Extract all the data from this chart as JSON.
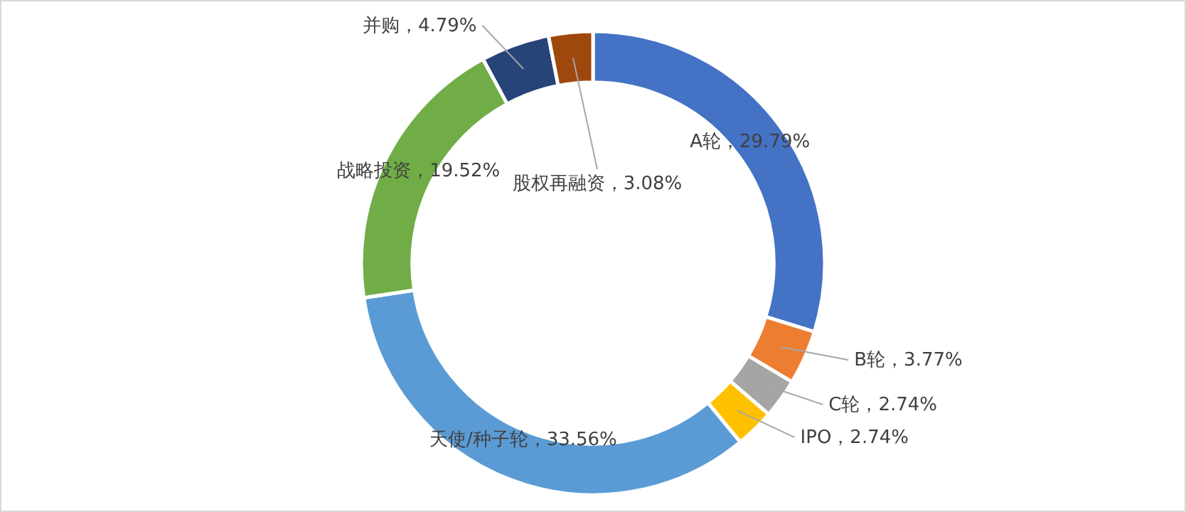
{
  "chart_data": {
    "type": "donut",
    "categories": [
      "A轮",
      "B轮",
      "C轮",
      "IPO",
      "天使/种子轮",
      "战略投资",
      "并购",
      "股权再融资"
    ],
    "values": [
      29.79,
      3.77,
      2.74,
      2.74,
      33.56,
      19.52,
      4.79,
      3.08
    ],
    "value_labels": [
      "29.79%",
      "3.77%",
      "2.74%",
      "2.74%",
      "33.56%",
      "19.52%",
      "4.79%",
      "3.08%"
    ],
    "colors": [
      "#4472c4",
      "#ed7d31",
      "#a5a5a5",
      "#ffc000",
      "#5b9bd5",
      "#70ad47",
      "#264478",
      "#9e480e"
    ]
  }
}
